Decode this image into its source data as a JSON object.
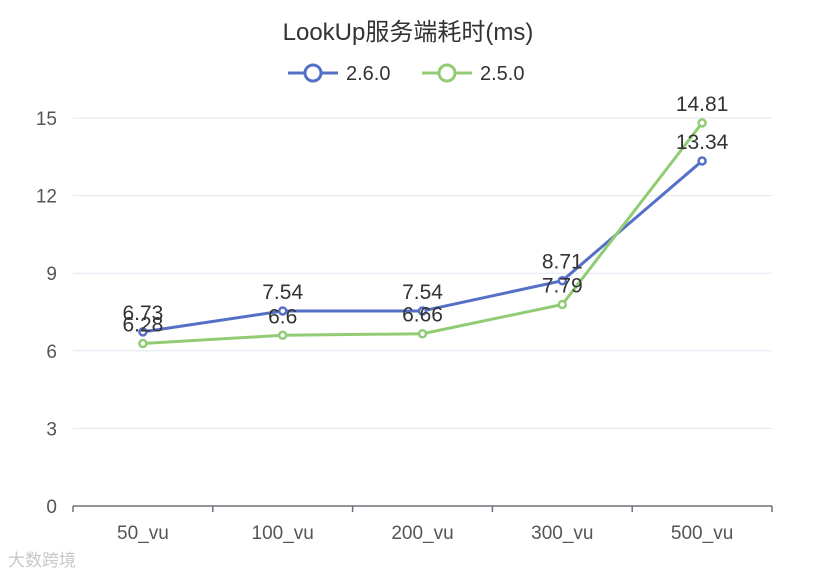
{
  "chart_data": {
    "type": "line",
    "title": "LookUp服务端耗时(ms)",
    "categories": [
      "50_vu",
      "100_vu",
      "200_vu",
      "300_vu",
      "500_vu"
    ],
    "series": [
      {
        "name": "2.6.0",
        "color": "#5470c6",
        "values": [
          6.73,
          7.54,
          7.54,
          8.71,
          13.34
        ],
        "labels": [
          "6.73",
          "7.54",
          "7.54",
          "8.71",
          "13.34"
        ]
      },
      {
        "name": "2.5.0",
        "color": "#91cc75",
        "values": [
          6.28,
          6.6,
          6.66,
          7.79,
          14.81
        ],
        "labels": [
          "6.28",
          "6.6",
          "6.66",
          "7.79",
          "14.81"
        ]
      }
    ],
    "yticks": [
      "0",
      "3",
      "6",
      "9",
      "12",
      "15"
    ],
    "ylim": [
      0,
      15
    ],
    "grid": true,
    "legend": "top-center"
  },
  "watermark": "大数跨境"
}
